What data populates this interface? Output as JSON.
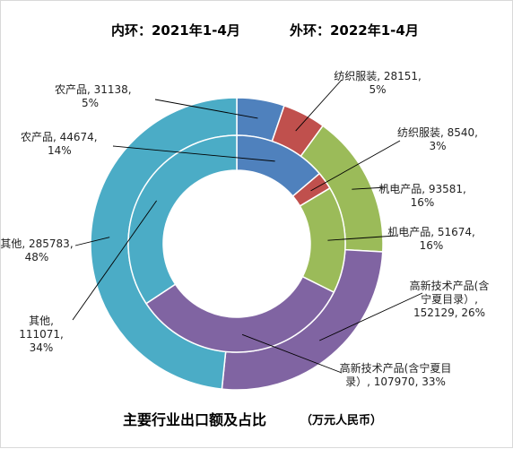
{
  "header": {
    "inner_caption": "内环：2021年1-4月",
    "outer_caption": "外环：2022年1-4月"
  },
  "footer": {
    "title": "主要行业出口额及占比",
    "unit": "（万元人民币）"
  },
  "chart_data": {
    "type": "pie",
    "subtype": "nested-donut",
    "inner_ring": {
      "caption": "内环：2021年1-4月",
      "slices": [
        {
          "label": "农产品",
          "value": 44674,
          "percent": "14%",
          "color": "#4f81bd",
          "text_lines": [
            "农产品, 44674,",
            "14%"
          ]
        },
        {
          "label": "纺织服装",
          "value": 8540,
          "percent": "3%",
          "color": "#c0504d",
          "text_lines": [
            "纺织服装, 8540,",
            "3%"
          ]
        },
        {
          "label": "机电产品",
          "value": 51674,
          "percent": "16%",
          "color": "#9bbb59",
          "text_lines": [
            "机电产品, 51674,",
            "16%"
          ]
        },
        {
          "label": "高新技术产品(含宁夏目录)",
          "value": 107970,
          "percent": "33%",
          "color": "#8064a2",
          "text_lines": [
            "高新技术产品(含宁夏目",
            "录）, 107970, 33%"
          ]
        },
        {
          "label": "其他",
          "value": 111071,
          "percent": "34%",
          "color": "#4bacc6",
          "text_lines": [
            "其他,",
            "111071,",
            "34%"
          ]
        }
      ]
    },
    "outer_ring": {
      "caption": "外环：2022年1-4月",
      "slices": [
        {
          "label": "农产品",
          "value": 31138,
          "percent": "5%",
          "color": "#4f81bd",
          "text_lines": [
            "农产品, 31138,",
            "5%"
          ]
        },
        {
          "label": "纺织服装",
          "value": 28151,
          "percent": "5%",
          "color": "#c0504d",
          "text_lines": [
            "纺织服装, 28151,",
            "5%"
          ]
        },
        {
          "label": "机电产品",
          "value": 93581,
          "percent": "16%",
          "color": "#9bbb59",
          "text_lines": [
            "机电产品, 93581,",
            "16%"
          ]
        },
        {
          "label": "高新技术产品(含宁夏目录)",
          "value": 152129,
          "percent": "26%",
          "color": "#8064a2",
          "text_lines": [
            "高新技术产品(含",
            "宁夏目录）,",
            "152129, 26%"
          ]
        },
        {
          "label": "其他",
          "value": 285783,
          "percent": "48%",
          "color": "#4bacc6",
          "text_lines": [
            "其他, 285783,",
            "48%"
          ]
        }
      ]
    },
    "title": "主要行业出口额及占比",
    "unit": "（万元人民币）",
    "legend": "none"
  }
}
